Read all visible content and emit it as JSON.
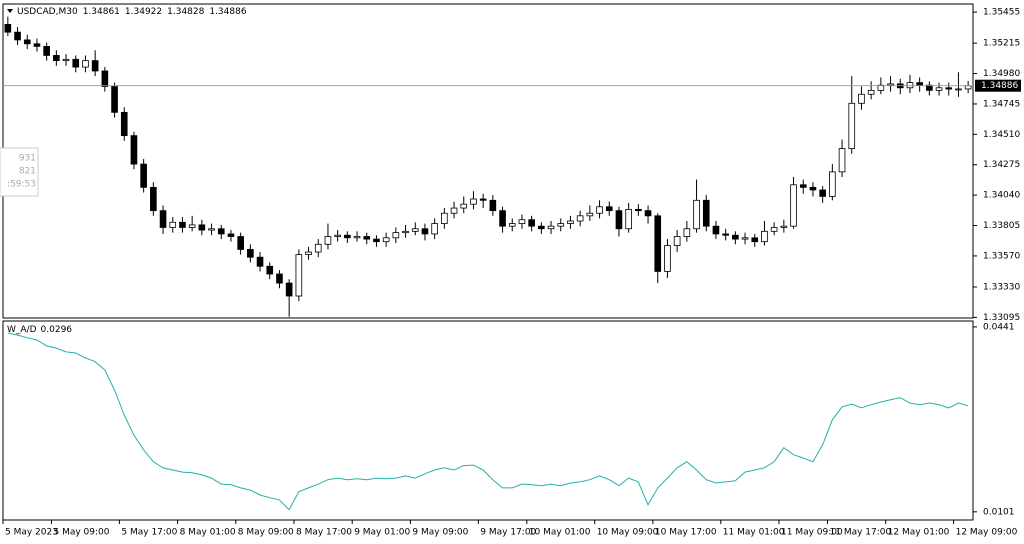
{
  "chart_data": [
    {
      "type": "candlestick",
      "title": "USDCAD,M30",
      "categories": [
        "5 May 2023",
        null,
        null,
        null,
        null,
        "5 May 09:00",
        null,
        null,
        null,
        null,
        null,
        null,
        "5 May 17:00",
        null,
        null,
        null,
        null,
        null,
        "8 May 01:00",
        null,
        null,
        null,
        null,
        null,
        "8 May 09:00",
        null,
        null,
        null,
        null,
        null,
        "8 May 17:00",
        null,
        null,
        null,
        null,
        null,
        "9 May 01:00",
        null,
        null,
        null,
        null,
        null,
        "9 May 09:00",
        null,
        null,
        null,
        null,
        null,
        null,
        "9 May 17:00",
        null,
        null,
        null,
        null,
        "10 May 01:00",
        null,
        null,
        null,
        null,
        null,
        null,
        "10 May 09:00",
        null,
        null,
        null,
        null,
        null,
        "10 May 17:00",
        null,
        null,
        null,
        null,
        null,
        null,
        "11 May 01:00",
        null,
        null,
        null,
        null,
        null,
        "11 May 09:00",
        null,
        null,
        null,
        null,
        "11 May 17:00",
        null,
        null,
        null,
        null,
        null,
        "12 May 01:00",
        null,
        null,
        null,
        null,
        null,
        null,
        "12 May 09:00",
        null
      ],
      "open": [
        1.3536,
        1.353,
        1.3524,
        1.3521,
        1.3519,
        1.3512,
        1.3508,
        1.3509,
        1.3503,
        1.3508,
        1.35,
        1.3488,
        1.3468,
        1.345,
        1.3428,
        1.341,
        1.3392,
        1.3379,
        1.3383,
        1.3379,
        1.3381,
        1.3377,
        1.3378,
        1.3374,
        1.3372,
        1.3362,
        1.3356,
        1.3349,
        1.3343,
        1.3336,
        1.3326,
        1.3358,
        1.336,
        1.3366,
        1.3372,
        1.3373,
        1.3371,
        1.3372,
        1.337,
        1.3368,
        1.3371,
        1.3375,
        1.3376,
        1.3378,
        1.3374,
        1.3382,
        1.339,
        1.3394,
        1.3397,
        1.3401,
        1.34,
        1.3392,
        1.338,
        1.3382,
        1.3385,
        1.338,
        1.3378,
        1.338,
        1.3382,
        1.3384,
        1.3388,
        1.339,
        1.3395,
        1.3392,
        1.3378,
        1.3393,
        1.3392,
        1.3388,
        1.3345,
        1.3365,
        1.3372,
        1.3378,
        1.34,
        1.338,
        1.3374,
        1.3373,
        1.337,
        1.3371,
        1.3368,
        1.3376,
        1.3379,
        1.338,
        1.3412,
        1.341,
        1.3408,
        1.3403,
        1.3422,
        1.344,
        1.3475,
        1.3482,
        1.3485,
        1.3489,
        1.349,
        1.3487,
        1.3491,
        1.3489,
        1.3485,
        1.3487,
        1.3486,
        1.34861
      ],
      "high": [
        1.3542,
        1.3534,
        1.3528,
        1.3525,
        1.3522,
        1.3516,
        1.3513,
        1.3512,
        1.3512,
        1.3516,
        1.3503,
        1.3491,
        1.3472,
        1.3453,
        1.3432,
        1.3414,
        1.3396,
        1.3387,
        1.3387,
        1.3388,
        1.3385,
        1.3382,
        1.3381,
        1.3377,
        1.3375,
        1.3366,
        1.336,
        1.3352,
        1.3346,
        1.3339,
        1.3362,
        1.3364,
        1.337,
        1.3382,
        1.3377,
        1.3376,
        1.3376,
        1.3375,
        1.3373,
        1.3375,
        1.3379,
        1.3381,
        1.3383,
        1.3382,
        1.3386,
        1.3394,
        1.3399,
        1.3403,
        1.3407,
        1.3405,
        1.3404,
        1.3395,
        1.3386,
        1.3389,
        1.3388,
        1.3383,
        1.3384,
        1.3386,
        1.3388,
        1.3392,
        1.3396,
        1.34,
        1.3399,
        1.3395,
        1.3398,
        1.3397,
        1.3396,
        1.339,
        1.337,
        1.3377,
        1.3384,
        1.3416,
        1.3404,
        1.3384,
        1.3378,
        1.3376,
        1.3375,
        1.3374,
        1.3384,
        1.3383,
        1.3385,
        1.3418,
        1.3416,
        1.3414,
        1.3411,
        1.3428,
        1.3447,
        1.3496,
        1.3488,
        1.3492,
        1.3495,
        1.3496,
        1.3494,
        1.3497,
        1.3495,
        1.3492,
        1.3491,
        1.3491,
        1.3499,
        1.34922
      ],
      "low": [
        1.3527,
        1.352,
        1.3517,
        1.3515,
        1.3508,
        1.3504,
        1.3504,
        1.3499,
        1.3499,
        1.3496,
        1.3484,
        1.3464,
        1.3446,
        1.3424,
        1.3406,
        1.3388,
        1.3374,
        1.3375,
        1.3375,
        1.3376,
        1.3373,
        1.3373,
        1.337,
        1.3368,
        1.3358,
        1.3352,
        1.3345,
        1.3339,
        1.3332,
        1.331,
        1.3322,
        1.3354,
        1.3356,
        1.3362,
        1.3368,
        1.3367,
        1.3368,
        1.3366,
        1.3364,
        1.3364,
        1.3367,
        1.3371,
        1.3373,
        1.3369,
        1.337,
        1.3378,
        1.3386,
        1.339,
        1.3393,
        1.3394,
        1.3388,
        1.3375,
        1.3376,
        1.3378,
        1.3376,
        1.3374,
        1.3374,
        1.3376,
        1.3378,
        1.338,
        1.3384,
        1.3386,
        1.3388,
        1.3372,
        1.3375,
        1.3388,
        1.3382,
        1.3336,
        1.334,
        1.336,
        1.3368,
        1.3375,
        1.3376,
        1.337,
        1.3369,
        1.3366,
        1.3366,
        1.3364,
        1.3365,
        1.3373,
        1.3375,
        1.3378,
        1.3405,
        1.3403,
        1.3398,
        1.34,
        1.3418,
        1.3436,
        1.347,
        1.3478,
        1.3482,
        1.3484,
        1.3482,
        1.3483,
        1.3484,
        1.3481,
        1.3481,
        1.3481,
        1.348,
        1.34828
      ],
      "close": [
        1.353,
        1.3524,
        1.3521,
        1.3519,
        1.3512,
        1.3508,
        1.3509,
        1.3503,
        1.3508,
        1.35,
        1.3488,
        1.3468,
        1.345,
        1.3428,
        1.341,
        1.3392,
        1.3379,
        1.3383,
        1.3379,
        1.3381,
        1.3377,
        1.3378,
        1.3374,
        1.3372,
        1.3362,
        1.3356,
        1.3349,
        1.3343,
        1.3336,
        1.3326,
        1.3358,
        1.336,
        1.3366,
        1.3372,
        1.3373,
        1.3371,
        1.3372,
        1.337,
        1.3368,
        1.3371,
        1.3375,
        1.3376,
        1.3378,
        1.3374,
        1.3382,
        1.339,
        1.3394,
        1.3397,
        1.3401,
        1.34,
        1.3392,
        1.338,
        1.3382,
        1.3385,
        1.338,
        1.3378,
        1.338,
        1.3382,
        1.3384,
        1.3388,
        1.339,
        1.3395,
        1.3392,
        1.3378,
        1.3393,
        1.3392,
        1.3388,
        1.3345,
        1.3365,
        1.3372,
        1.3378,
        1.34,
        1.338,
        1.3374,
        1.3373,
        1.337,
        1.3371,
        1.3368,
        1.3376,
        1.3379,
        1.338,
        1.3412,
        1.341,
        1.3408,
        1.3403,
        1.3422,
        1.344,
        1.3475,
        1.3482,
        1.3485,
        1.3489,
        1.349,
        1.3487,
        1.3491,
        1.3489,
        1.3485,
        1.3487,
        1.3486,
        1.34861,
        1.34886
      ],
      "up_color": "#ffffff",
      "down_color": "#000000",
      "line_color": "#000000",
      "ylim": [
        1.3309,
        1.3551
      ],
      "yticks": [
        1.35455,
        1.35215,
        {
          "value": 1.3498,
          "label": "1.34980"
        },
        1.34745,
        {
          "value": 1.3451,
          "label": "1.34510"
        },
        1.34275,
        {
          "value": 1.3404,
          "label": "1.34040"
        },
        1.33805,
        {
          "value": 1.3357,
          "label": "1.33570"
        },
        {
          "value": 1.3333,
          "label": "1.33330"
        },
        1.33095
      ],
      "tooltip": [
        "931",
        "821",
        ":59:53"
      ]
    },
    {
      "type": "line",
      "title": "W_A/D",
      "color": "#20b2aa",
      "values": [
        0.043,
        0.0426,
        0.0421,
        0.0417,
        0.0406,
        0.0402,
        0.0395,
        0.0393,
        0.0384,
        0.0377,
        0.0362,
        0.0325,
        0.0279,
        0.0242,
        0.0215,
        0.0193,
        0.0182,
        0.0178,
        0.0174,
        0.0173,
        0.0169,
        0.0163,
        0.0152,
        0.0151,
        0.0145,
        0.0141,
        0.0132,
        0.0127,
        0.0123,
        0.0105,
        0.0138,
        0.0145,
        0.0152,
        0.016,
        0.0163,
        0.016,
        0.0162,
        0.016,
        0.0163,
        0.0162,
        0.0163,
        0.0167,
        0.0163,
        0.0171,
        0.0178,
        0.0182,
        0.0178,
        0.0186,
        0.0187,
        0.0178,
        0.016,
        0.0145,
        0.0145,
        0.0152,
        0.0151,
        0.0149,
        0.0152,
        0.0149,
        0.0154,
        0.0156,
        0.016,
        0.0167,
        0.016,
        0.0149,
        0.0163,
        0.0156,
        0.0114,
        0.0145,
        0.0163,
        0.0182,
        0.0193,
        0.0178,
        0.016,
        0.0154,
        0.0156,
        0.0158,
        0.0174,
        0.0178,
        0.0182,
        0.0193,
        0.0219,
        0.0206,
        0.02,
        0.0193,
        0.0224,
        0.027,
        0.0294,
        0.0299,
        0.0292,
        0.0298,
        0.0303,
        0.0307,
        0.0311,
        0.0301,
        0.0298,
        0.0301,
        0.0298,
        0.0292,
        0.0301,
        0.0296
      ],
      "ylim": [
        0.0086,
        0.045
      ],
      "yticks": [
        0.0441,
        0.0101
      ]
    }
  ]
}
